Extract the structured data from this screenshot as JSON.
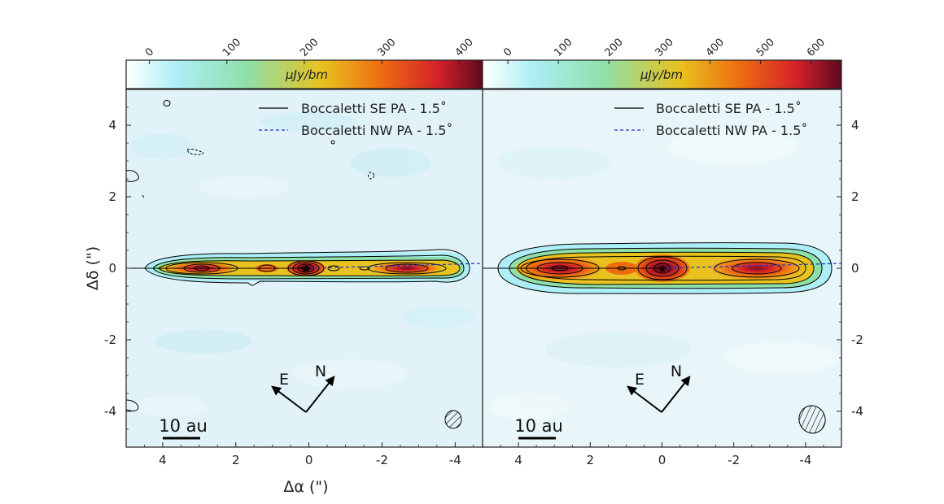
{
  "colors": {
    "background_noise": "#e1f3f8",
    "contour": "#000000",
    "se_line": "#000000",
    "nw_line": "#1a33cc"
  },
  "colormap_stops": [
    "#ffffff",
    "#aeeef7",
    "#8fe0a8",
    "#e8c21f",
    "#ee6b10",
    "#d21f2a",
    "#5c0a1e"
  ],
  "labels": {
    "xlabel": "Δα (\")",
    "ylabel": "Δδ (\")",
    "cbar_unit": "μJy/bm",
    "scale_bar": "10 au",
    "compass_e": "E",
    "compass_n": "N",
    "x_ticks": [
      "4",
      "2",
      "0",
      "-2",
      "-4"
    ],
    "y_ticks": [
      "4",
      "2",
      "0",
      "-2",
      "-4"
    ]
  },
  "chart_data": [
    {
      "type": "heatmap",
      "panel": "left",
      "xlim": [
        5,
        -4.75
      ],
      "ylim": [
        -5,
        5
      ],
      "x_ticks": [
        4,
        2,
        0,
        -2,
        -4
      ],
      "y_ticks": [
        4,
        2,
        0,
        -2,
        -4
      ],
      "legend": [
        {
          "label": "Boccaletti SE PA - 1.5$^\\circ$",
          "text": "Boccaletti SE PA - 1.5˚",
          "style": "solid",
          "color": "#000000"
        },
        {
          "label": "Boccaletti NW PA - 1.5$^\\circ$",
          "text": "Boccaletti NW PA - 1.5˚",
          "style": "dashed",
          "color": "#1a33cc"
        }
      ],
      "colorbar": {
        "ticks": [
          "0",
          "100",
          "200",
          "300",
          "400"
        ],
        "range": [
          -30,
          430
        ],
        "label": "μJy/bm"
      },
      "grid": false
    },
    {
      "type": "heatmap",
      "panel": "right",
      "xlim": [
        5,
        -5
      ],
      "ylim": [
        -5,
        5
      ],
      "x_ticks": [
        4,
        2,
        0,
        -2,
        -4
      ],
      "y_ticks": [
        4,
        2,
        0,
        -2,
        -4
      ],
      "legend": [
        {
          "label": "Boccaletti SE PA - 1.5$^\\circ$",
          "text": "Boccaletti SE PA - 1.5˚",
          "style": "solid",
          "color": "#000000"
        },
        {
          "label": "Boccaletti NW PA - 1.5$^\\circ$",
          "text": "Boccaletti NW PA - 1.5˚",
          "style": "dashed",
          "color": "#1a33cc"
        }
      ],
      "colorbar": {
        "ticks": [
          "0",
          "100",
          "200",
          "300",
          "400",
          "500",
          "600"
        ],
        "range": [
          -50,
          660
        ],
        "label": "μJy/bm"
      },
      "grid": false
    }
  ]
}
